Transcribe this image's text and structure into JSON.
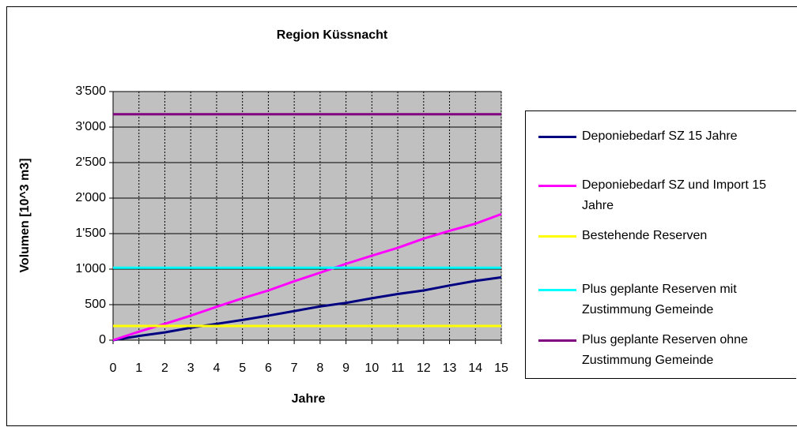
{
  "chart_data": {
    "type": "line",
    "title": "Region Küssnacht",
    "x_label": "Jahre",
    "y_label": "Volumen [10^3 m3]",
    "x": [
      0,
      1,
      2,
      3,
      4,
      5,
      6,
      7,
      8,
      9,
      10,
      11,
      12,
      13,
      14,
      15
    ],
    "xlim": [
      0,
      15
    ],
    "xticks": [
      0,
      1,
      2,
      3,
      4,
      5,
      6,
      7,
      8,
      9,
      10,
      11,
      12,
      13,
      14,
      15
    ],
    "ylim": [
      0,
      3500
    ],
    "yticks": [
      0,
      500,
      {
        "value": 1000,
        "label": "1'000"
      },
      {
        "value": 1500,
        "label": "1'500"
      },
      {
        "value": 2000,
        "label": "2'000"
      },
      {
        "value": 2500,
        "label": "2'500"
      },
      {
        "value": 3000,
        "label": "3'000"
      },
      {
        "value": 3500,
        "label": "3'500"
      }
    ],
    "grid": true,
    "series": [
      {
        "name": "Deponiebedarf SZ 15 Jahre",
        "color": "#000080",
        "values": [
          0,
          60,
          110,
          175,
          230,
          285,
          345,
          410,
          475,
          525,
          590,
          650,
          700,
          770,
          835,
          885
        ]
      },
      {
        "name": "Deponiebedarf SZ und Import 15 Jahre",
        "color": "#ff00ff",
        "values": [
          0,
          120,
          230,
          345,
          470,
          590,
          700,
          830,
          950,
          1075,
          1190,
          1300,
          1430,
          1540,
          1640,
          1775
        ]
      },
      {
        "name": "Bestehende Reserven",
        "color": "#ffff00",
        "values": [
          200,
          200,
          200,
          200,
          200,
          200,
          200,
          200,
          200,
          200,
          200,
          200,
          200,
          200,
          200,
          200
        ]
      },
      {
        "name": "Plus geplante Reserven mit Zustimmung Gemeinde",
        "color": "#00ffff",
        "values": [
          1020,
          1020,
          1020,
          1020,
          1020,
          1020,
          1020,
          1020,
          1020,
          1020,
          1020,
          1020,
          1020,
          1020,
          1020,
          1020
        ]
      },
      {
        "name": "Plus geplante Reserven ohne Zustimmung Gemeinde",
        "color": "#800080",
        "values": [
          3180,
          3180,
          3180,
          3180,
          3180,
          3180,
          3180,
          3180,
          3180,
          3180,
          3180,
          3180,
          3180,
          3180,
          3180,
          3180
        ]
      }
    ]
  }
}
